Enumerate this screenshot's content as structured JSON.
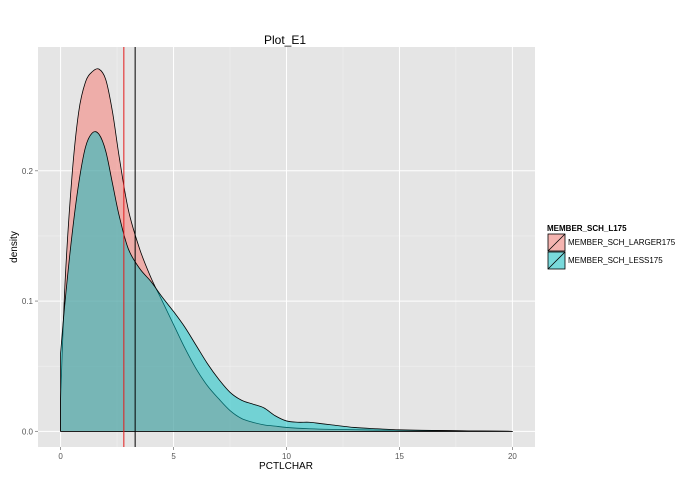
{
  "chart_data": {
    "type": "area",
    "title": "Plot_E1",
    "xlabel": "PCTLCHAR",
    "ylabel": "density",
    "xlim": [
      -1.0,
      21.0
    ],
    "ylim": [
      -0.012,
      0.295
    ],
    "x_ticks": [
      0,
      5,
      10,
      15,
      20
    ],
    "x_tick_labels": [
      "0",
      "5",
      "10",
      "15",
      "20"
    ],
    "y_ticks": [
      0.0,
      0.1,
      0.2
    ],
    "y_tick_labels": [
      "0.0",
      "0.1",
      "0.2"
    ],
    "grid": true,
    "legend": {
      "title": "MEMBER_SCH_L175",
      "position": "right"
    },
    "series": [
      {
        "name": "MEMBER_SCH_LARGER175",
        "color": "#F8766D",
        "x": [
          0,
          0.2,
          0.5,
          0.8,
          1.1,
          1.4,
          1.7,
          2.0,
          2.3,
          2.6,
          3.0,
          3.5,
          4.0,
          4.5,
          5.0,
          5.5,
          6.0,
          6.5,
          7.0,
          7.5,
          8.0,
          8.5,
          9.0,
          9.5,
          10.0,
          11.0,
          12.0,
          14.0,
          17.0,
          20.0
        ],
        "y": [
          0.025,
          0.115,
          0.195,
          0.245,
          0.268,
          0.276,
          0.278,
          0.27,
          0.245,
          0.21,
          0.17,
          0.14,
          0.118,
          0.1,
          0.082,
          0.064,
          0.048,
          0.035,
          0.025,
          0.016,
          0.01,
          0.007,
          0.005,
          0.004,
          0.003,
          0.002,
          0.0015,
          0.001,
          0.0005,
          0.0
        ]
      },
      {
        "name": "MEMBER_SCH_LESS175",
        "color": "#00BFC4",
        "x": [
          0,
          0.2,
          0.5,
          0.8,
          1.1,
          1.4,
          1.7,
          2.0,
          2.3,
          2.6,
          3.0,
          3.5,
          4.0,
          4.5,
          5.0,
          5.5,
          6.0,
          6.5,
          7.0,
          7.5,
          8.0,
          8.5,
          9.0,
          9.5,
          10.0,
          10.5,
          11.0,
          11.5,
          12.0,
          13.0,
          14.0,
          15.0,
          16.0,
          18.0,
          20.0
        ],
        "y": [
          0.06,
          0.1,
          0.15,
          0.19,
          0.218,
          0.229,
          0.228,
          0.215,
          0.19,
          0.165,
          0.14,
          0.125,
          0.115,
          0.103,
          0.092,
          0.08,
          0.066,
          0.052,
          0.04,
          0.03,
          0.024,
          0.021,
          0.018,
          0.012,
          0.008,
          0.007,
          0.007,
          0.006,
          0.005,
          0.003,
          0.002,
          0.0012,
          0.0008,
          0.0004,
          0.0
        ]
      }
    ],
    "vlines": [
      {
        "x": 2.8,
        "color": "#E41A1C"
      },
      {
        "x": 3.3,
        "color": "#000000"
      }
    ]
  }
}
